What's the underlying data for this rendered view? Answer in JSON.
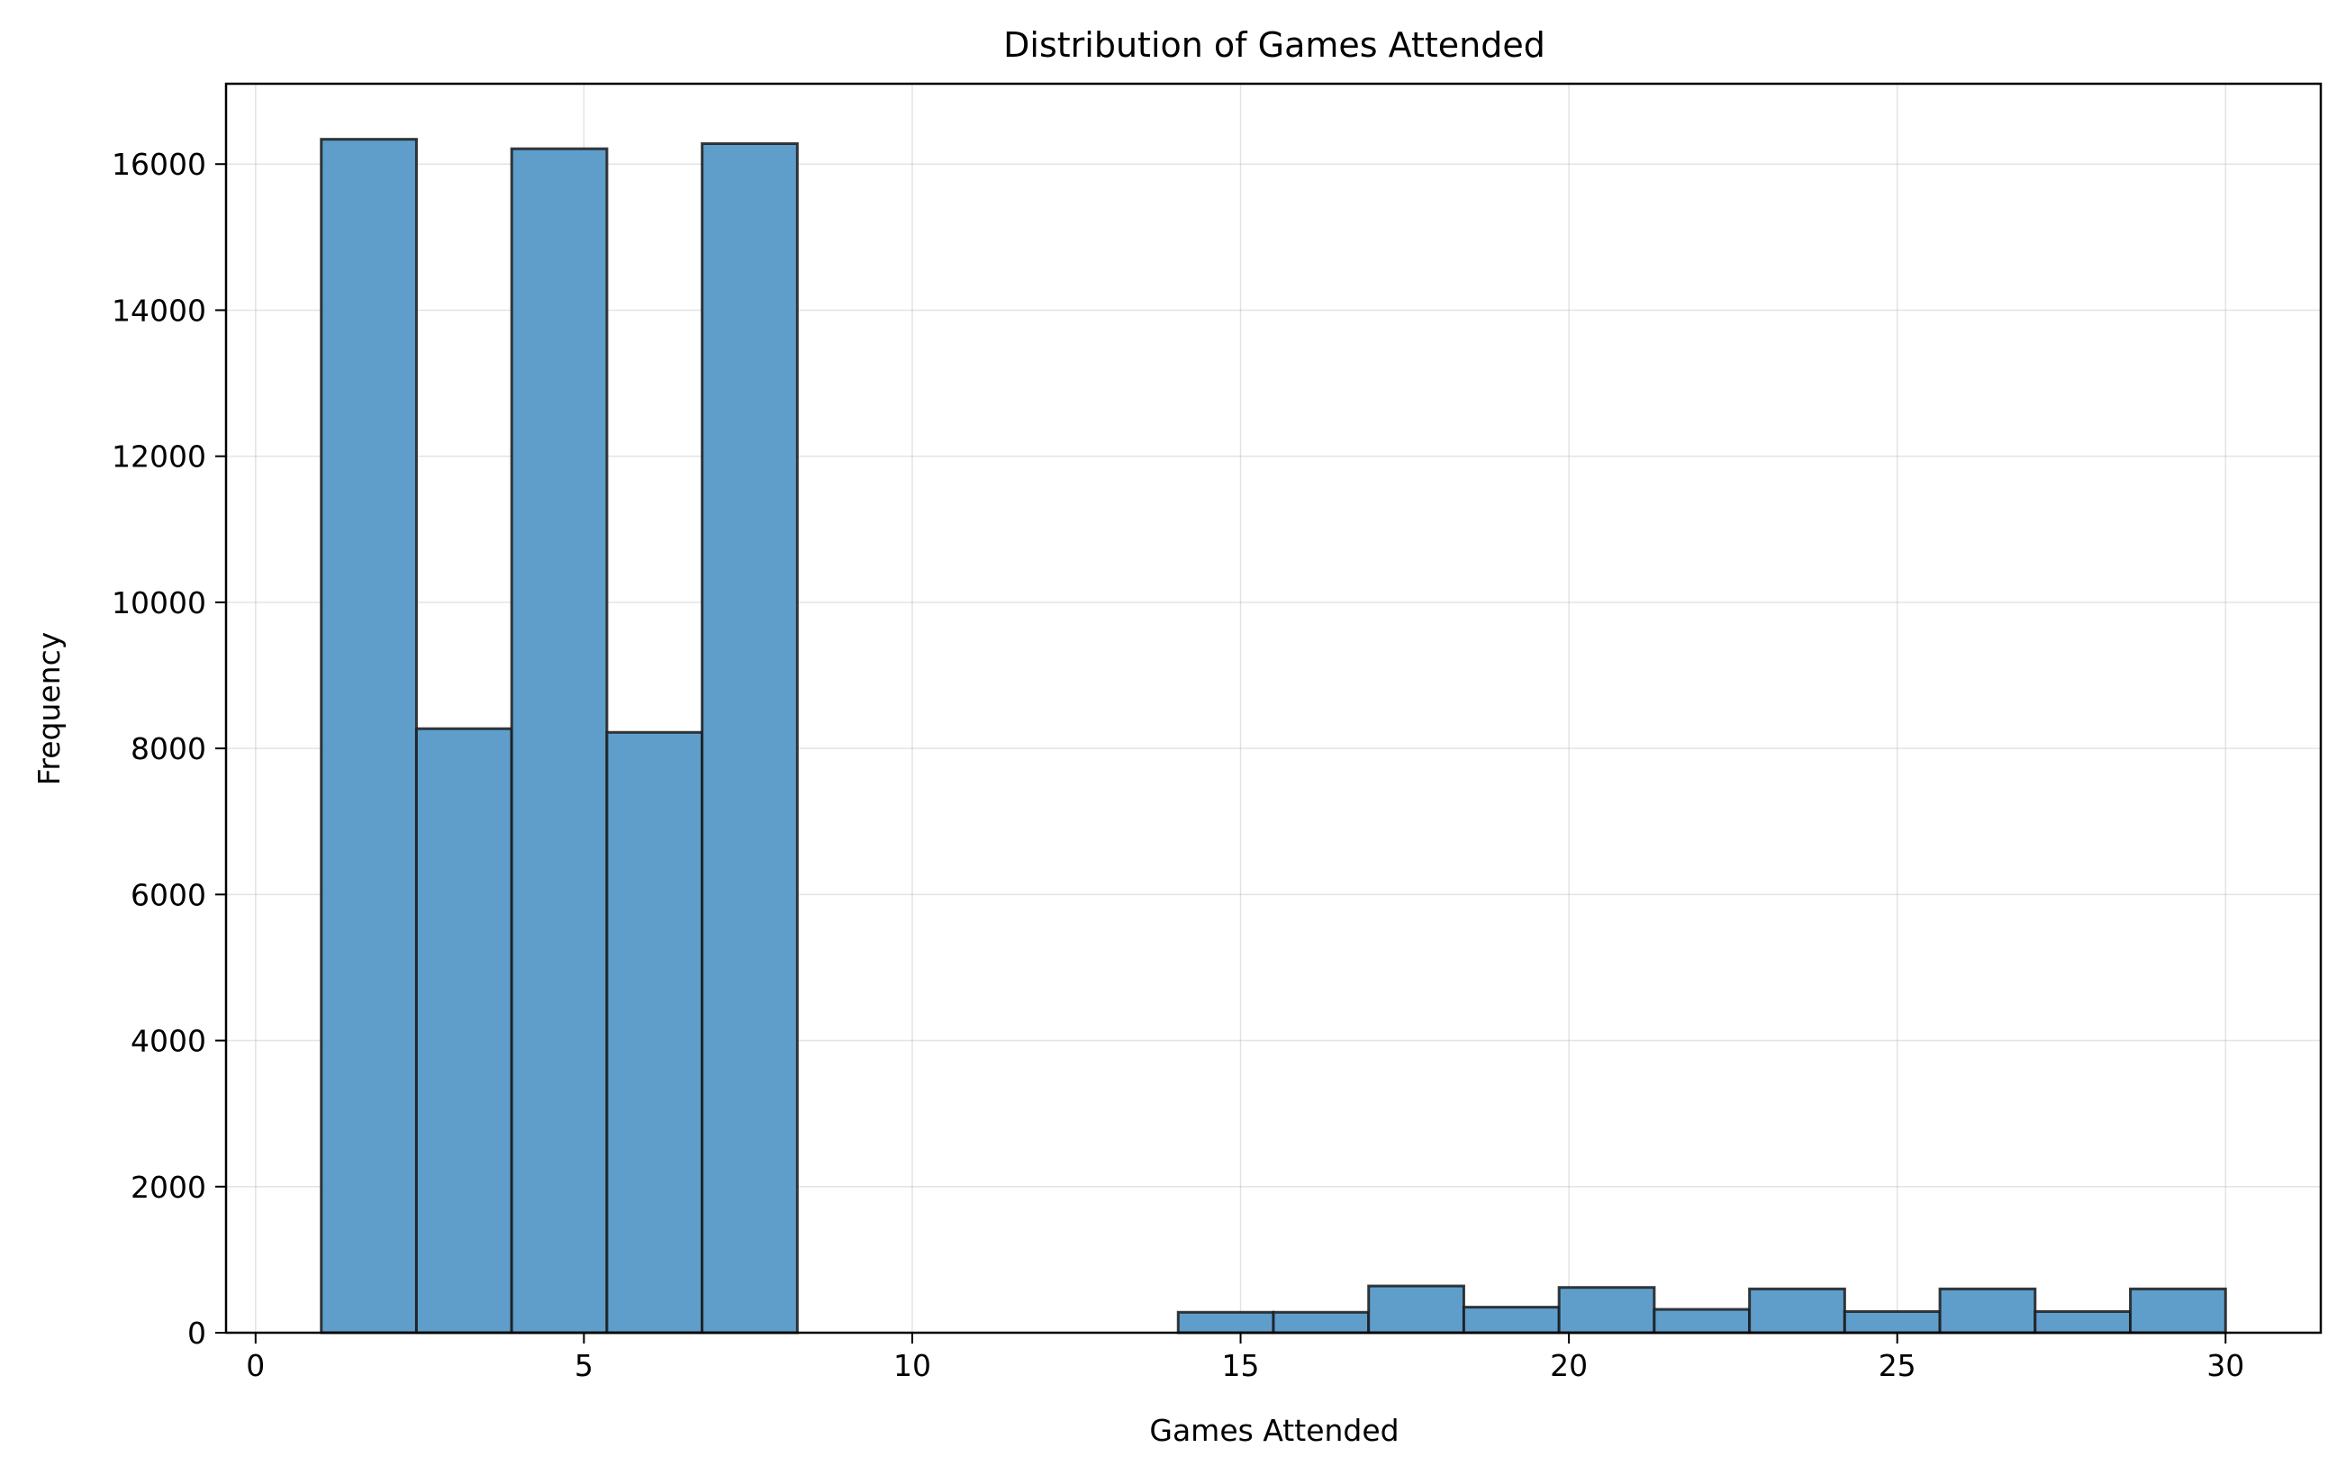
{
  "chart_data": {
    "type": "histogram",
    "title": "Distribution of Games Attended",
    "xlabel": "Games Attended",
    "ylabel": "Frequency",
    "xlim": [
      -0.45,
      31.45
    ],
    "ylim": [
      0,
      17100
    ],
    "xticks": [
      0,
      5,
      10,
      15,
      20,
      25,
      30
    ],
    "yticks": [
      0,
      2000,
      4000,
      6000,
      8000,
      10000,
      12000,
      14000,
      16000
    ],
    "grid": true,
    "bar_color": "#5f9ecb",
    "edge_color": "#1a1a1a",
    "bins": [
      {
        "x0": 1.0,
        "x1": 2.45,
        "value": 16340
      },
      {
        "x0": 2.45,
        "x1": 3.9,
        "value": 8270
      },
      {
        "x0": 3.9,
        "x1": 5.35,
        "value": 16210
      },
      {
        "x0": 5.35,
        "x1": 6.8,
        "value": 8220
      },
      {
        "x0": 6.8,
        "x1": 8.25,
        "value": 16280
      },
      {
        "x0": 8.25,
        "x1": 9.7,
        "value": 0
      },
      {
        "x0": 9.7,
        "x1": 11.15,
        "value": 0
      },
      {
        "x0": 11.15,
        "x1": 12.6,
        "value": 0
      },
      {
        "x0": 12.6,
        "x1": 14.05,
        "value": 0
      },
      {
        "x0": 14.05,
        "x1": 15.5,
        "value": 280
      },
      {
        "x0": 15.5,
        "x1": 16.95,
        "value": 280
      },
      {
        "x0": 16.95,
        "x1": 18.4,
        "value": 640
      },
      {
        "x0": 18.4,
        "x1": 19.85,
        "value": 350
      },
      {
        "x0": 19.85,
        "x1": 21.3,
        "value": 620
      },
      {
        "x0": 21.3,
        "x1": 22.75,
        "value": 320
      },
      {
        "x0": 22.75,
        "x1": 24.2,
        "value": 600
      },
      {
        "x0": 24.2,
        "x1": 25.65,
        "value": 290
      },
      {
        "x0": 25.65,
        "x1": 27.1,
        "value": 600
      },
      {
        "x0": 27.1,
        "x1": 28.55,
        "value": 290
      },
      {
        "x0": 28.55,
        "x1": 30.0,
        "value": 600
      }
    ]
  }
}
